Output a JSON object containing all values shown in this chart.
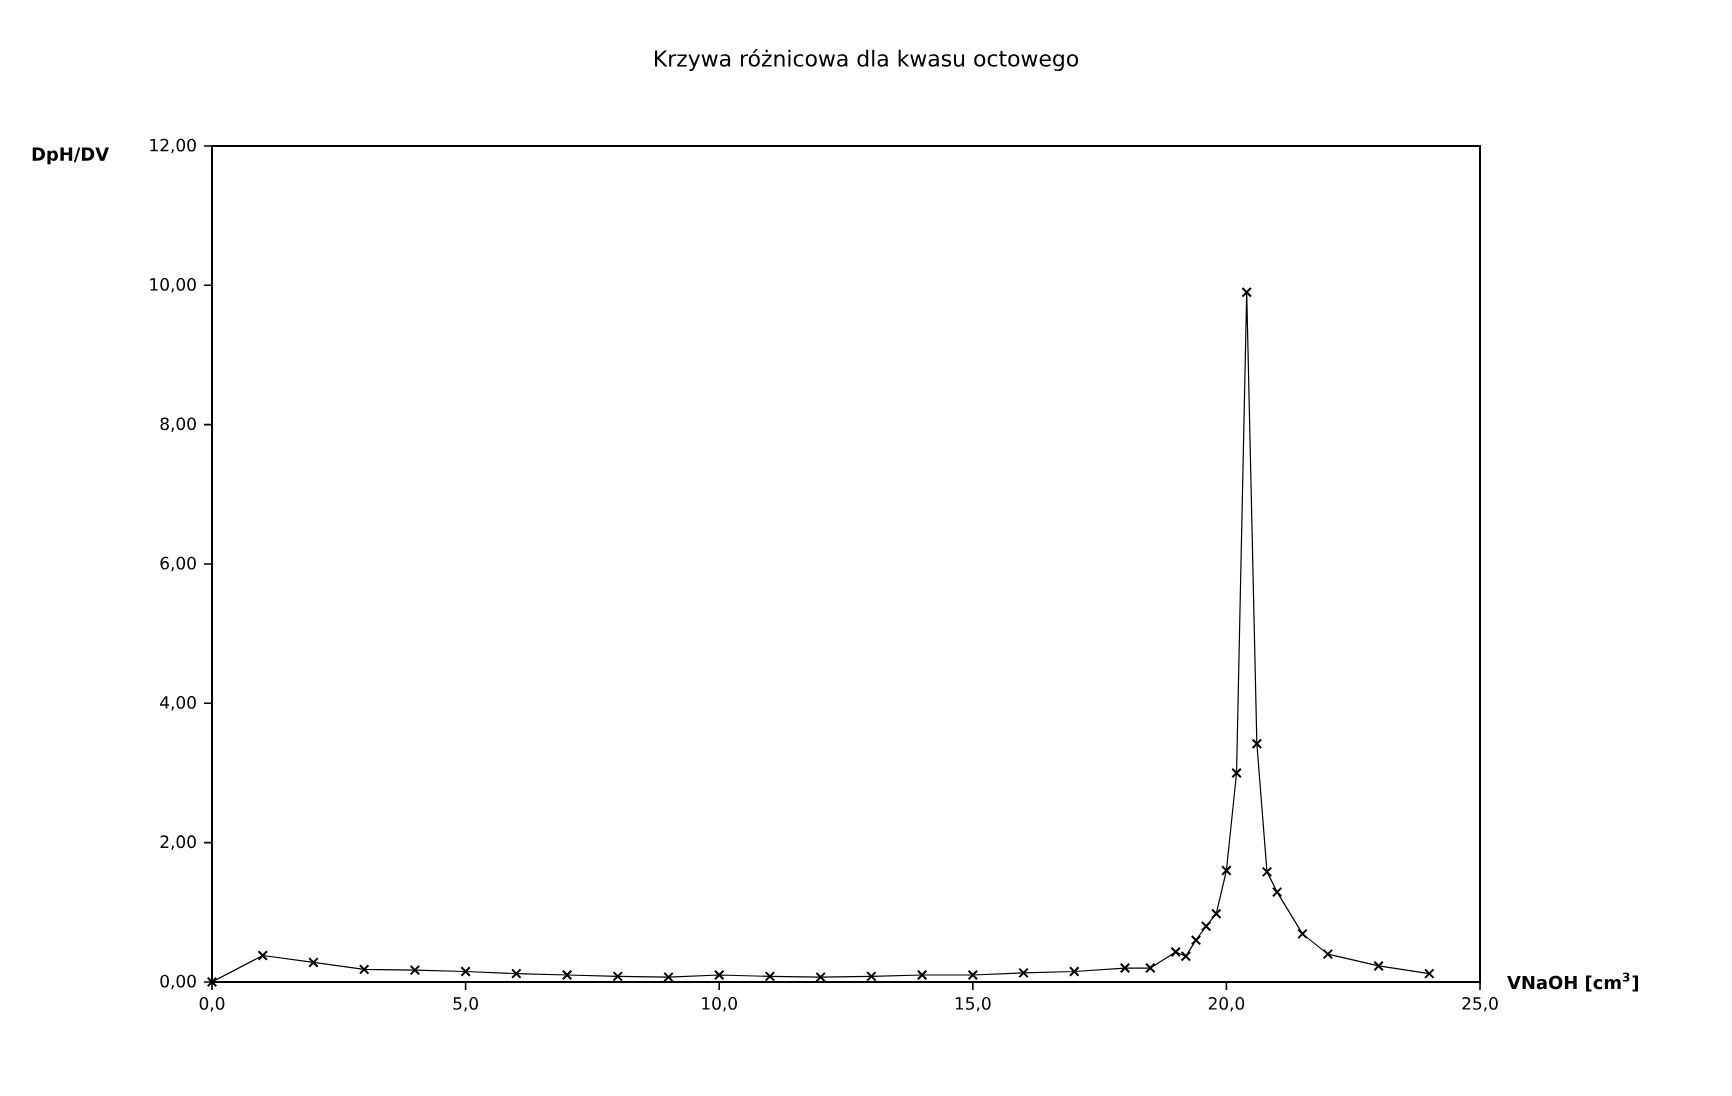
{
  "chart_data": {
    "type": "line",
    "title": "Krzywa różnicowa dla kwasu octowego",
    "xlabel": "VNaOH [cm$^{3}$]",
    "ylabel": "DpH/DV",
    "x": [
      0,
      1,
      2,
      3,
      4,
      5,
      6,
      7,
      8,
      9,
      10,
      11,
      12,
      13,
      14,
      15,
      16,
      17,
      18,
      18.5,
      19,
      19.2,
      19.4,
      19.6,
      19.8,
      20.0,
      20.2,
      20.4,
      20.6,
      20.8,
      21.0,
      21.5,
      22,
      23,
      24
    ],
    "series": [
      {
        "color": "#000000",
        "values": [
          0,
          0.38,
          0.28,
          0.18,
          0.17,
          0.15,
          0.12,
          0.1,
          0.08,
          0.07,
          0.1,
          0.08,
          0.07,
          0.08,
          0.1,
          0.1,
          0.13,
          0.15,
          0.2,
          0.2,
          0.43,
          0.37,
          0.6,
          0.8,
          0.98,
          1.6,
          3.0,
          9.9,
          3.42,
          1.58,
          1.29,
          0.69,
          0.4,
          0.23,
          0.12
        ]
      }
    ],
    "xlim": [
      0,
      25
    ],
    "ylim": [
      0,
      12
    ],
    "xticks": [
      {
        "value": 0,
        "label": "0,0"
      },
      {
        "value": 5,
        "label": "5,0"
      },
      {
        "value": 10,
        "label": "10,0"
      },
      {
        "value": 15,
        "label": "15,0"
      },
      {
        "value": 20,
        "label": "20,0"
      },
      {
        "value": 25,
        "label": "25,0"
      }
    ],
    "yticks": [
      {
        "value": 0,
        "label": "0,00"
      },
      {
        "value": 2,
        "label": "2,00"
      },
      {
        "value": 4,
        "label": "4,00"
      },
      {
        "value": 6,
        "label": "6,00"
      },
      {
        "value": 8,
        "label": "8,00"
      },
      {
        "value": 10,
        "label": "10,00"
      },
      {
        "value": 12,
        "label": "12,00"
      }
    ],
    "marker": "cross",
    "line_style": "solid"
  }
}
